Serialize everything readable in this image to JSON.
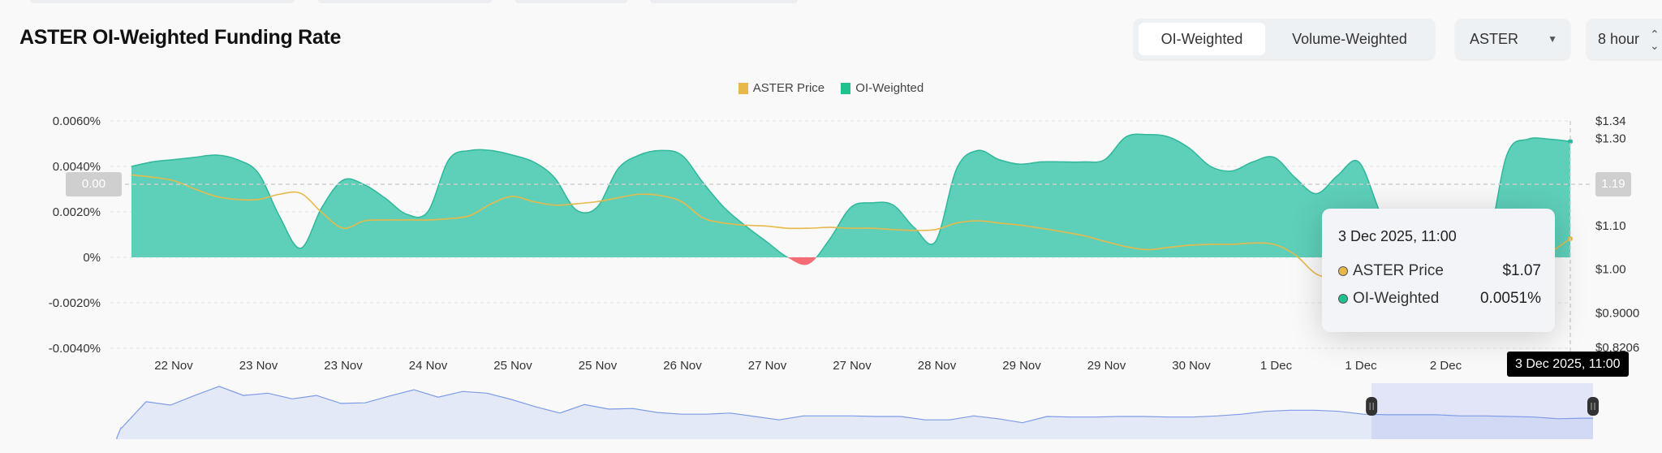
{
  "title": "ASTER OI-Weighted Funding Rate",
  "controls": {
    "weighting_options": [
      "OI-Weighted",
      "Volume-Weighted"
    ],
    "weighting_selected": "OI-Weighted",
    "symbol": "ASTER",
    "interval": "8 hour"
  },
  "colors": {
    "price": "#e8b94a",
    "funding_positive": "#5ecfb9",
    "funding_line": "#2fb89b",
    "funding_negative": "#f56c75",
    "navigator": "#7d9be6"
  },
  "tooltip": {
    "time": "3 Dec 2025, 11:00",
    "rows": [
      {
        "label": "ASTER Price",
        "value": "$1.07"
      },
      {
        "label": "OI-Weighted",
        "value": "0.0051%"
      }
    ]
  },
  "crosshair": {
    "left_value": "0.00",
    "right_value": "1.19",
    "x_label": "3 Dec 2025, 11:00"
  },
  "chart_data": {
    "type": "area",
    "title": "ASTER OI-Weighted Funding Rate",
    "legend": {
      "position": "top-center",
      "entries": [
        "ASTER Price",
        "OI-Weighted"
      ]
    },
    "grid": true,
    "x_tick_labels": [
      "22 Nov",
      "23 Nov",
      "23 Nov",
      "24 Nov",
      "25 Nov",
      "25 Nov",
      "26 Nov",
      "27 Nov",
      "27 Nov",
      "28 Nov",
      "29 Nov",
      "29 Nov",
      "30 Nov",
      "1 Dec",
      "1 Dec",
      "2 Dec"
    ],
    "y_left": {
      "ticks": [
        0.006,
        0.004,
        0.002,
        0,
        -0.002,
        -0.004
      ],
      "tick_labels": [
        "0.0060%",
        "0.0040%",
        "0.0020%",
        "0%",
        "-0.0020%",
        "-0.0040%"
      ],
      "range": [
        -0.004,
        0.006
      ],
      "unit": "%"
    },
    "y_right": {
      "ticks": [
        1.34,
        1.3,
        1.1,
        1.0,
        0.9,
        0.8206
      ],
      "tick_labels": [
        "$1.34",
        "$1.30",
        "$1.10",
        "$1.00",
        "$0.9000",
        "$0.8206"
      ],
      "range": [
        0.8206,
        1.34
      ]
    },
    "series": [
      {
        "name": "OI-Weighted",
        "type": "area",
        "axis": "left",
        "values": [
          0.004,
          0.0042,
          0.0043,
          0.0044,
          0.0045,
          0.0043,
          0.0037,
          0.0018,
          0.0004,
          0.0022,
          0.0034,
          0.0032,
          0.0026,
          0.0019,
          0.002,
          0.0043,
          0.0047,
          0.0047,
          0.0045,
          0.0042,
          0.0035,
          0.0021,
          0.0022,
          0.0039,
          0.0045,
          0.0047,
          0.0045,
          0.0033,
          0.0022,
          0.0014,
          0.0007,
          0.0,
          -0.0003,
          0.0008,
          0.0022,
          0.0024,
          0.0023,
          0.0013,
          0.0007,
          0.0039,
          0.0047,
          0.0043,
          0.0041,
          0.0042,
          0.0042,
          0.0042,
          0.0043,
          0.0053,
          0.0054,
          0.0053,
          0.0048,
          0.004,
          0.0038,
          0.0042,
          0.0044,
          0.0035,
          0.0028,
          0.0036,
          0.0042,
          0.002,
          0.0001,
          0.0002,
          0.0002,
          0.0002,
          0.0002,
          0.0045,
          0.0052,
          0.0052,
          0.0051
        ]
      },
      {
        "name": "ASTER Price",
        "type": "line",
        "axis": "right",
        "values": [
          1.216,
          1.211,
          1.203,
          1.184,
          1.167,
          1.16,
          1.16,
          1.172,
          1.174,
          1.13,
          1.094,
          1.111,
          1.113,
          1.113,
          1.113,
          1.116,
          1.123,
          1.15,
          1.167,
          1.155,
          1.147,
          1.15,
          1.155,
          1.164,
          1.172,
          1.169,
          1.155,
          1.118,
          1.106,
          1.101,
          1.099,
          1.094,
          1.094,
          1.096,
          1.094,
          1.094,
          1.091,
          1.089,
          1.091,
          1.106,
          1.111,
          1.106,
          1.101,
          1.094,
          1.086,
          1.077,
          1.064,
          1.052,
          1.045,
          1.05,
          1.055,
          1.057,
          1.057,
          1.06,
          1.057,
          1.033,
          0.989,
          0.979,
          0.979,
          0.989,
          0.996,
          1.003,
          1.008,
          1.003,
          1.008,
          1.013,
          1.02,
          1.038,
          1.07
        ]
      }
    ],
    "navigator": {
      "levels_percent": [
        20,
        66,
        60,
        77,
        93,
        77,
        81,
        71,
        77,
        63,
        64,
        76,
        87,
        74,
        84,
        81,
        70,
        57,
        46,
        61,
        53,
        54,
        47,
        44,
        44,
        46,
        40,
        34,
        41,
        41,
        41,
        40,
        40,
        34,
        34,
        41,
        36,
        29,
        40,
        39,
        39,
        40,
        40,
        39,
        39,
        41,
        44,
        49,
        51,
        51,
        49,
        44,
        43,
        43,
        43,
        41,
        41,
        40,
        39,
        36,
        37
      ],
      "selection": [
        0.85,
        1.0
      ]
    }
  }
}
